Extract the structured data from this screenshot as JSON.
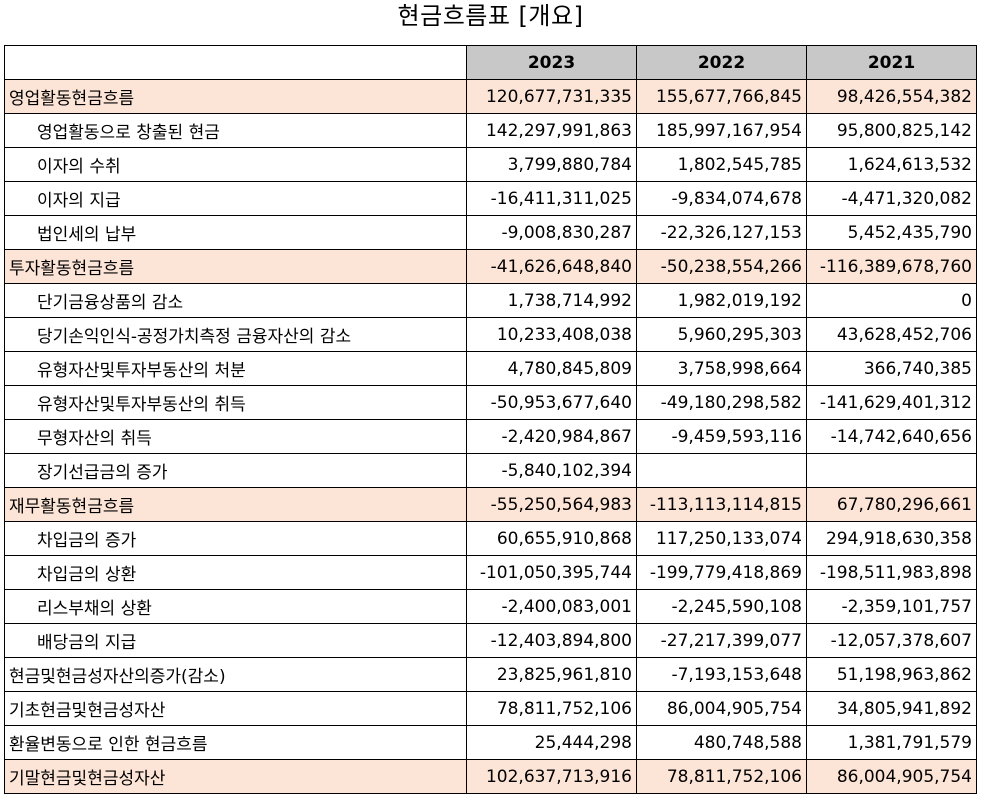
{
  "title": "현금흐름표 [개요]",
  "table": {
    "headers": [
      "",
      "2023",
      "2022",
      "2021"
    ],
    "rows": [
      {
        "label": "영업활동현금흐름",
        "v2023": "120,677,731,335",
        "v2022": "155,677,766,845",
        "v2021": "98,426,554,382",
        "highlight": true,
        "indent": false
      },
      {
        "label": "영업활동으로 창출된 현금",
        "v2023": "142,297,991,863",
        "v2022": "185,997,167,954",
        "v2021": "95,800,825,142",
        "highlight": false,
        "indent": true
      },
      {
        "label": "이자의 수취",
        "v2023": "3,799,880,784",
        "v2022": "1,802,545,785",
        "v2021": "1,624,613,532",
        "highlight": false,
        "indent": true
      },
      {
        "label": "이자의 지급",
        "v2023": "-16,411,311,025",
        "v2022": "-9,834,074,678",
        "v2021": "-4,471,320,082",
        "highlight": false,
        "indent": true
      },
      {
        "label": "법인세의 납부",
        "v2023": "-9,008,830,287",
        "v2022": "-22,326,127,153",
        "v2021": "5,452,435,790",
        "highlight": false,
        "indent": true
      },
      {
        "label": "투자활동현금흐름",
        "v2023": "-41,626,648,840",
        "v2022": "-50,238,554,266",
        "v2021": "-116,389,678,760",
        "highlight": true,
        "indent": false
      },
      {
        "label": "단기금융상품의 감소",
        "v2023": "1,738,714,992",
        "v2022": "1,982,019,192",
        "v2021": "0",
        "highlight": false,
        "indent": true
      },
      {
        "label": "당기손익인식-공정가치측정 금융자산의 감소",
        "v2023": "10,233,408,038",
        "v2022": "5,960,295,303",
        "v2021": "43,628,452,706",
        "highlight": false,
        "indent": true
      },
      {
        "label": "유형자산및투자부동산의 처분",
        "v2023": "4,780,845,809",
        "v2022": "3,758,998,664",
        "v2021": "366,740,385",
        "highlight": false,
        "indent": true
      },
      {
        "label": "유형자산및투자부동산의 취득",
        "v2023": "-50,953,677,640",
        "v2022": "-49,180,298,582",
        "v2021": "-141,629,401,312",
        "highlight": false,
        "indent": true
      },
      {
        "label": "무형자산의 취득",
        "v2023": "-2,420,984,867",
        "v2022": "-9,459,593,116",
        "v2021": "-14,742,640,656",
        "highlight": false,
        "indent": true
      },
      {
        "label": "장기선급금의 증가",
        "v2023": "-5,840,102,394",
        "v2022": "",
        "v2021": "",
        "highlight": false,
        "indent": true
      },
      {
        "label": "재무활동현금흐름",
        "v2023": "-55,250,564,983",
        "v2022": "-113,113,114,815",
        "v2021": "67,780,296,661",
        "highlight": true,
        "indent": false
      },
      {
        "label": "차입금의 증가",
        "v2023": "60,655,910,868",
        "v2022": "117,250,133,074",
        "v2021": "294,918,630,358",
        "highlight": false,
        "indent": true
      },
      {
        "label": "차입금의 상환",
        "v2023": "-101,050,395,744",
        "v2022": "-199,779,418,869",
        "v2021": "-198,511,983,898",
        "highlight": false,
        "indent": true
      },
      {
        "label": "리스부채의 상환",
        "v2023": "-2,400,083,001",
        "v2022": "-2,245,590,108",
        "v2021": "-2,359,101,757",
        "highlight": false,
        "indent": true
      },
      {
        "label": "배당금의 지급",
        "v2023": "-12,403,894,800",
        "v2022": "-27,217,399,077",
        "v2021": "-12,057,378,607",
        "highlight": false,
        "indent": true
      },
      {
        "label": "현금및현금성자산의증가(감소)",
        "v2023": "23,825,961,810",
        "v2022": "-7,193,153,648",
        "v2021": "51,198,963,862",
        "highlight": false,
        "indent": false
      },
      {
        "label": "기초현금및현금성자산",
        "v2023": "78,811,752,106",
        "v2022": "86,004,905,754",
        "v2021": "34,805,941,892",
        "highlight": false,
        "indent": false
      },
      {
        "label": "환율변동으로 인한 현금흐름",
        "v2023": "25,444,298",
        "v2022": "480,748,588",
        "v2021": "1,381,791,579",
        "highlight": false,
        "indent": false
      },
      {
        "label": "기말현금및현금성자산",
        "v2023": "102,637,713,916",
        "v2022": "78,811,752,106",
        "v2021": "86,004,905,754",
        "highlight": true,
        "indent": false
      }
    ]
  },
  "colors": {
    "header_bg": "#c8c8c8",
    "highlight_bg": "#fce4d6",
    "border": "#000000"
  }
}
